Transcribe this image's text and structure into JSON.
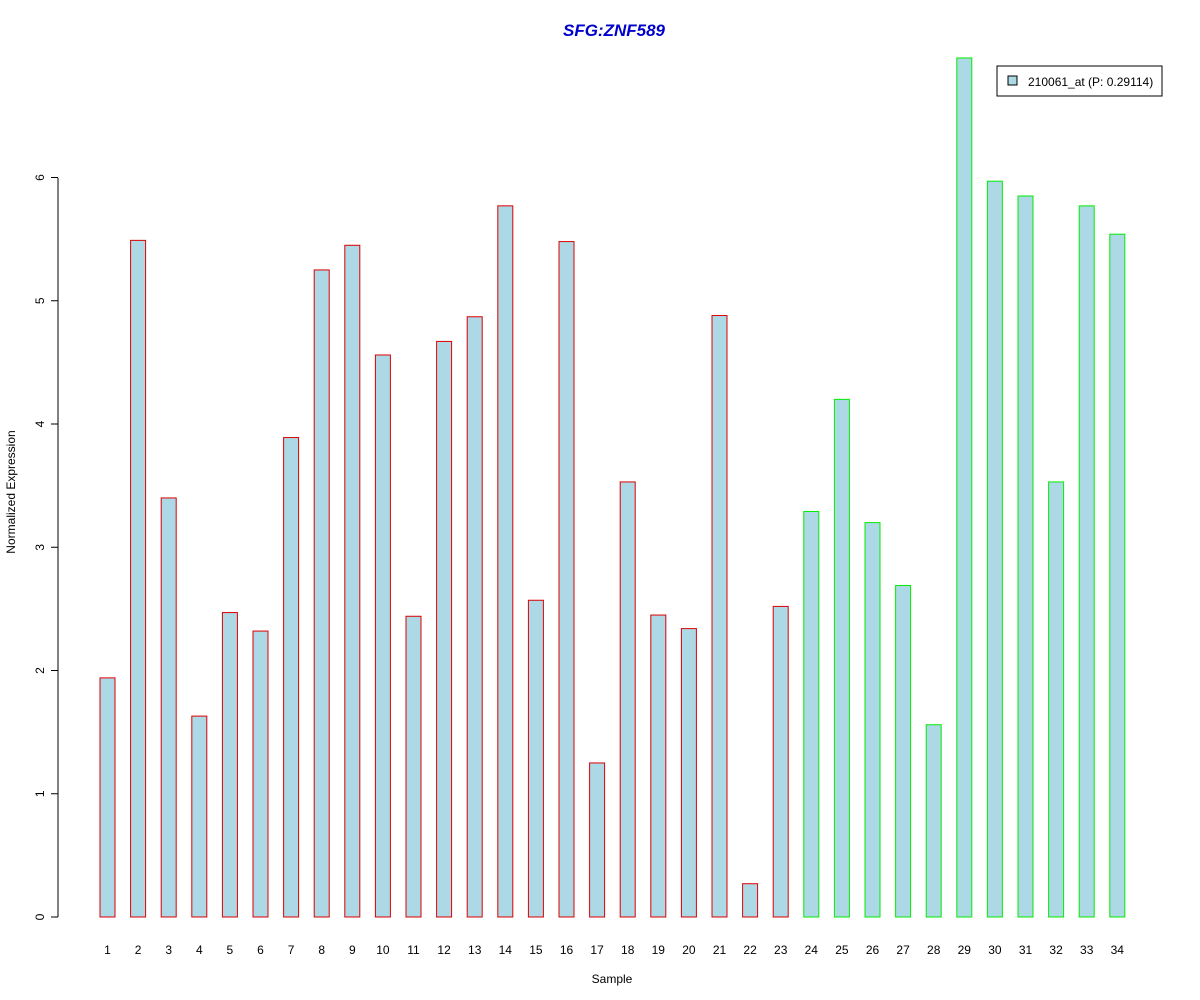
{
  "chart_data": {
    "type": "bar",
    "title": "SFG:ZNF589",
    "xlabel": "Sample",
    "ylabel": "Normalized Expression",
    "categories": [
      "1",
      "2",
      "3",
      "4",
      "5",
      "6",
      "7",
      "8",
      "9",
      "10",
      "11",
      "12",
      "13",
      "14",
      "15",
      "16",
      "17",
      "18",
      "19",
      "20",
      "21",
      "22",
      "23",
      "24",
      "25",
      "26",
      "27",
      "28",
      "29",
      "30",
      "31",
      "32",
      "33",
      "34"
    ],
    "series": [
      {
        "name": "210061_at (P: 0.29114)",
        "values": [
          1.94,
          5.49,
          3.4,
          1.63,
          2.47,
          2.32,
          3.89,
          5.25,
          5.45,
          4.56,
          2.44,
          4.67,
          4.87,
          5.77,
          2.57,
          5.48,
          1.25,
          3.53,
          2.45,
          2.34,
          4.88,
          0.27,
          2.52,
          3.29,
          4.2,
          3.2,
          2.69,
          1.56,
          6.97,
          5.97,
          5.85,
          3.53,
          5.77,
          5.54
        ]
      }
    ],
    "groups": [
      {
        "from": 1,
        "to": 23,
        "border_color": "#dd0000"
      },
      {
        "from": 24,
        "to": 34,
        "border_color": "#00ee00"
      }
    ],
    "bar_fill": "#add8e6",
    "yticks": [
      "0",
      "1",
      "2",
      "3",
      "4",
      "5",
      "6"
    ],
    "ylim": [
      0,
      6.97
    ],
    "legend_position": "top-right",
    "legend_swatch_color": "#add8e6",
    "grid": false
  }
}
